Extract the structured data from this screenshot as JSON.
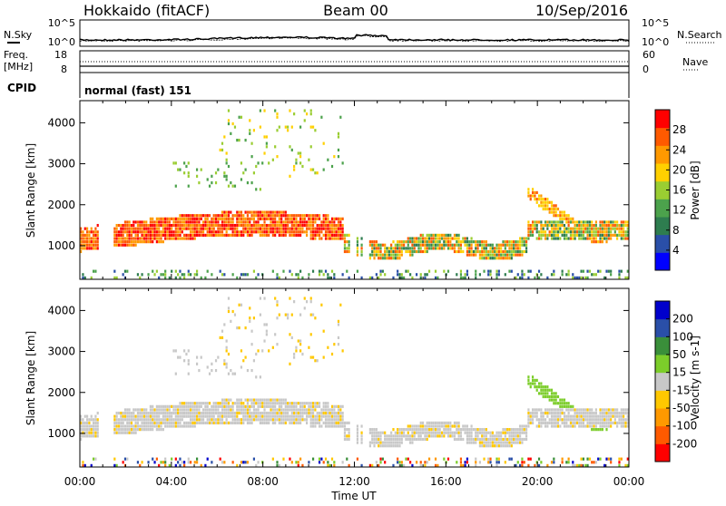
{
  "header": {
    "station": "Hokkaido (fitACF)",
    "beam": "Beam 00",
    "date": "10/Sep/2016"
  },
  "noise_panel": {
    "left_label": "N.Sky",
    "right_label": "N.Search",
    "left_ticks": [
      "10^5",
      "10^0"
    ],
    "right_ticks": [
      "10^5",
      "10^0"
    ]
  },
  "freq_panel": {
    "left_label_1": "Freq.",
    "left_label_2": "[MHz]",
    "right_label": "Nave",
    "left_ticks": [
      "18",
      "8"
    ],
    "right_ticks": [
      "60",
      "0"
    ]
  },
  "cpid": {
    "label": "CPID",
    "text": "normal (fast) 151"
  },
  "colors": {
    "power_scale": [
      "#0000ff",
      "#2a4fa8",
      "#2e7d4f",
      "#4ca24c",
      "#9acd32",
      "#ffd000",
      "#ff9900",
      "#ff5a00",
      "#ff0000"
    ],
    "velocity_scale": [
      "#ff0000",
      "#ff5a00",
      "#ff9900",
      "#ffc800",
      "#c8c8c8",
      "#7ccd2a",
      "#3a8f3a",
      "#2a4fa8",
      "#0000cc"
    ],
    "ground_scatter": "#c8c8c8"
  },
  "chart_data": [
    {
      "type": "heatmap",
      "title": "",
      "xlabel": "Time UT",
      "ylabel": "Slant Range [km]",
      "xlim": [
        "00:00",
        "00:00"
      ],
      "ylim": [
        180,
        4540
      ],
      "x_ticks": [
        "00:00",
        "04:00",
        "08:00",
        "12:00",
        "16:00",
        "20:00",
        "00:00"
      ],
      "y_ticks": [
        1000,
        2000,
        3000,
        4000
      ],
      "colorbar_label": "Power [dB]",
      "colorbar_ticks": [
        "4",
        "8",
        "12",
        "16",
        "20",
        "24",
        "28"
      ],
      "colorbar_range": [
        0,
        30
      ]
    },
    {
      "type": "heatmap",
      "title": "",
      "xlabel": "Time UT",
      "ylabel": "Slant Range [km]",
      "xlim": [
        "00:00",
        "00:00"
      ],
      "ylim": [
        180,
        4540
      ],
      "x_ticks": [
        "00:00",
        "04:00",
        "08:00",
        "12:00",
        "16:00",
        "20:00",
        "00:00"
      ],
      "y_ticks": [
        1000,
        2000,
        3000,
        4000
      ],
      "colorbar_label": "Velocity [m s-1]",
      "colorbar_ticks": [
        "200",
        "100",
        "50",
        "15",
        "-15",
        "-50",
        "-100",
        "-200"
      ],
      "colorbar_range": [
        -250,
        250
      ]
    }
  ]
}
